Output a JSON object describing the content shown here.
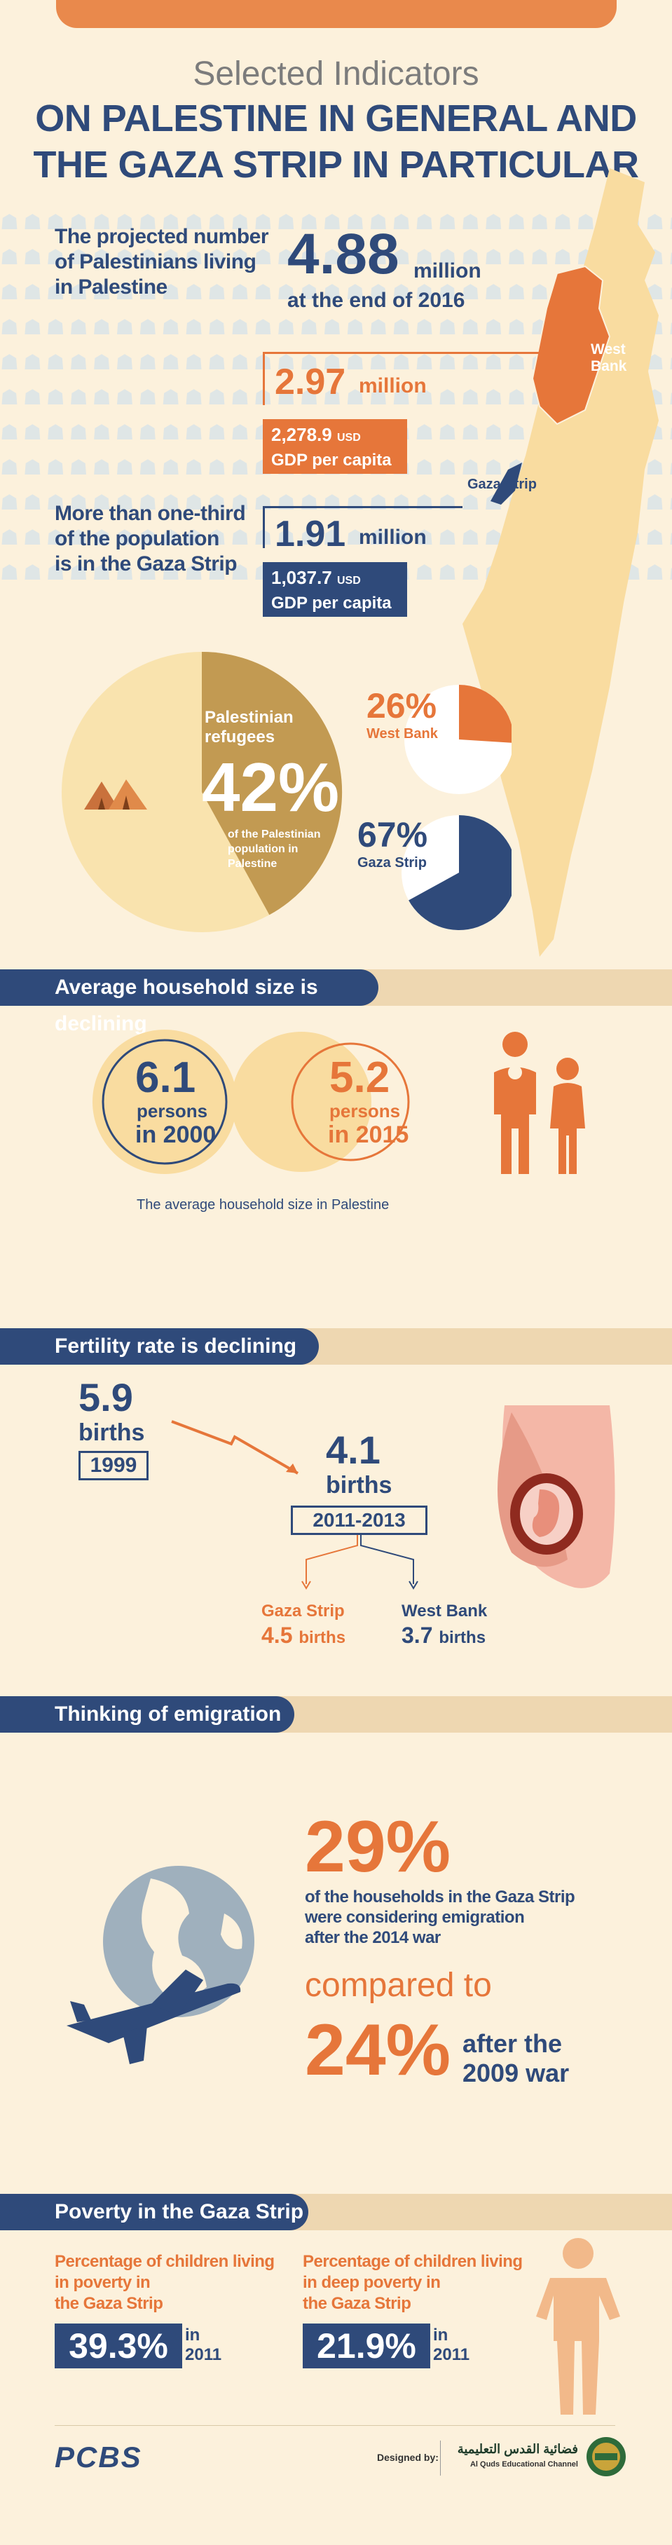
{
  "header": {
    "title_line1": "Selected Indicators",
    "title_line2": "ON PALESTINE IN GENERAL AND",
    "title_line3": "THE GAZA STRIP IN PARTICULAR"
  },
  "population": {
    "intro": [
      "The projected number",
      "of Palestinians living",
      "in Palestine"
    ],
    "total_value": "4.88",
    "total_unit": "million",
    "total_note": "at the end of 2016",
    "west_bank": {
      "label": [
        "West",
        "Bank"
      ],
      "value": "2.97",
      "unit": "million",
      "gdp_value": "2,278.9",
      "gdp_unit": "USD",
      "gdp_label": "GDP per capita"
    },
    "gaza": {
      "intro": [
        "More than one-third",
        "of the population",
        "is in the Gaza Strip"
      ],
      "label": "Gaza Strip",
      "value": "1.91",
      "unit": "million",
      "gdp_value": "1,037.7",
      "gdp_unit": "USD",
      "gdp_label": "GDP per capita"
    }
  },
  "refugees": {
    "label": [
      "Palestinian",
      "refugees"
    ],
    "percent": "42%",
    "share": 0.42,
    "desc": [
      "of the Palestinian",
      "population in",
      "Palestine"
    ],
    "west_bank": {
      "percent": "26%",
      "label": "West Bank",
      "share": 0.26
    },
    "gaza": {
      "percent": "67%",
      "label": "Gaza Strip",
      "share": 0.67
    }
  },
  "household": {
    "heading": "Average household size is declining",
    "y2000": {
      "value": "6.1",
      "unit": "persons",
      "year": "in 2000"
    },
    "y2015": {
      "value": "5.2",
      "unit": "persons",
      "year": "in 2015"
    },
    "caption": "The average household size in Palestine"
  },
  "fertility": {
    "heading": "Fertility rate is declining",
    "y1999": {
      "value": "5.9",
      "unit": "births",
      "year": "1999"
    },
    "y2011": {
      "value": "4.1",
      "unit": "births",
      "year": "2011-2013"
    },
    "gaza": {
      "label": "Gaza Strip",
      "value": "4.5",
      "unit": "births"
    },
    "west_bank": {
      "label": "West Bank",
      "value": "3.7",
      "unit": "births"
    }
  },
  "emigration": {
    "heading": "Thinking of emigration",
    "percent_2014": "29%",
    "desc": [
      "of the households in the Gaza Strip",
      "were considering emigration",
      "after the 2014 war"
    ],
    "compared": "compared to",
    "percent_2009": "24%",
    "after": [
      "after the",
      "2009 war"
    ]
  },
  "poverty": {
    "heading": "Poverty in the Gaza Strip",
    "children": {
      "label": [
        "Percentage of children living",
        "in poverty in",
        "the Gaza Strip"
      ],
      "value": "39.3%",
      "year": [
        "in",
        "2011"
      ]
    },
    "deep": {
      "label": [
        "Percentage of children living",
        "in deep poverty in",
        "the Gaza Strip"
      ],
      "value": "21.9%",
      "year": [
        "in",
        "2011"
      ]
    }
  },
  "footer": {
    "logo": "PCBS",
    "designed_by": "Designed by:",
    "channel_ar": "فضائية القدس التعليمية",
    "channel_en": "Al Quds Educational Channel"
  },
  "colors": {
    "navy": "#2f4a7a",
    "orange": "#e6763a",
    "cream": "#fcf1dc",
    "tan": "#c29a52",
    "pale": "#f9e3ae"
  }
}
